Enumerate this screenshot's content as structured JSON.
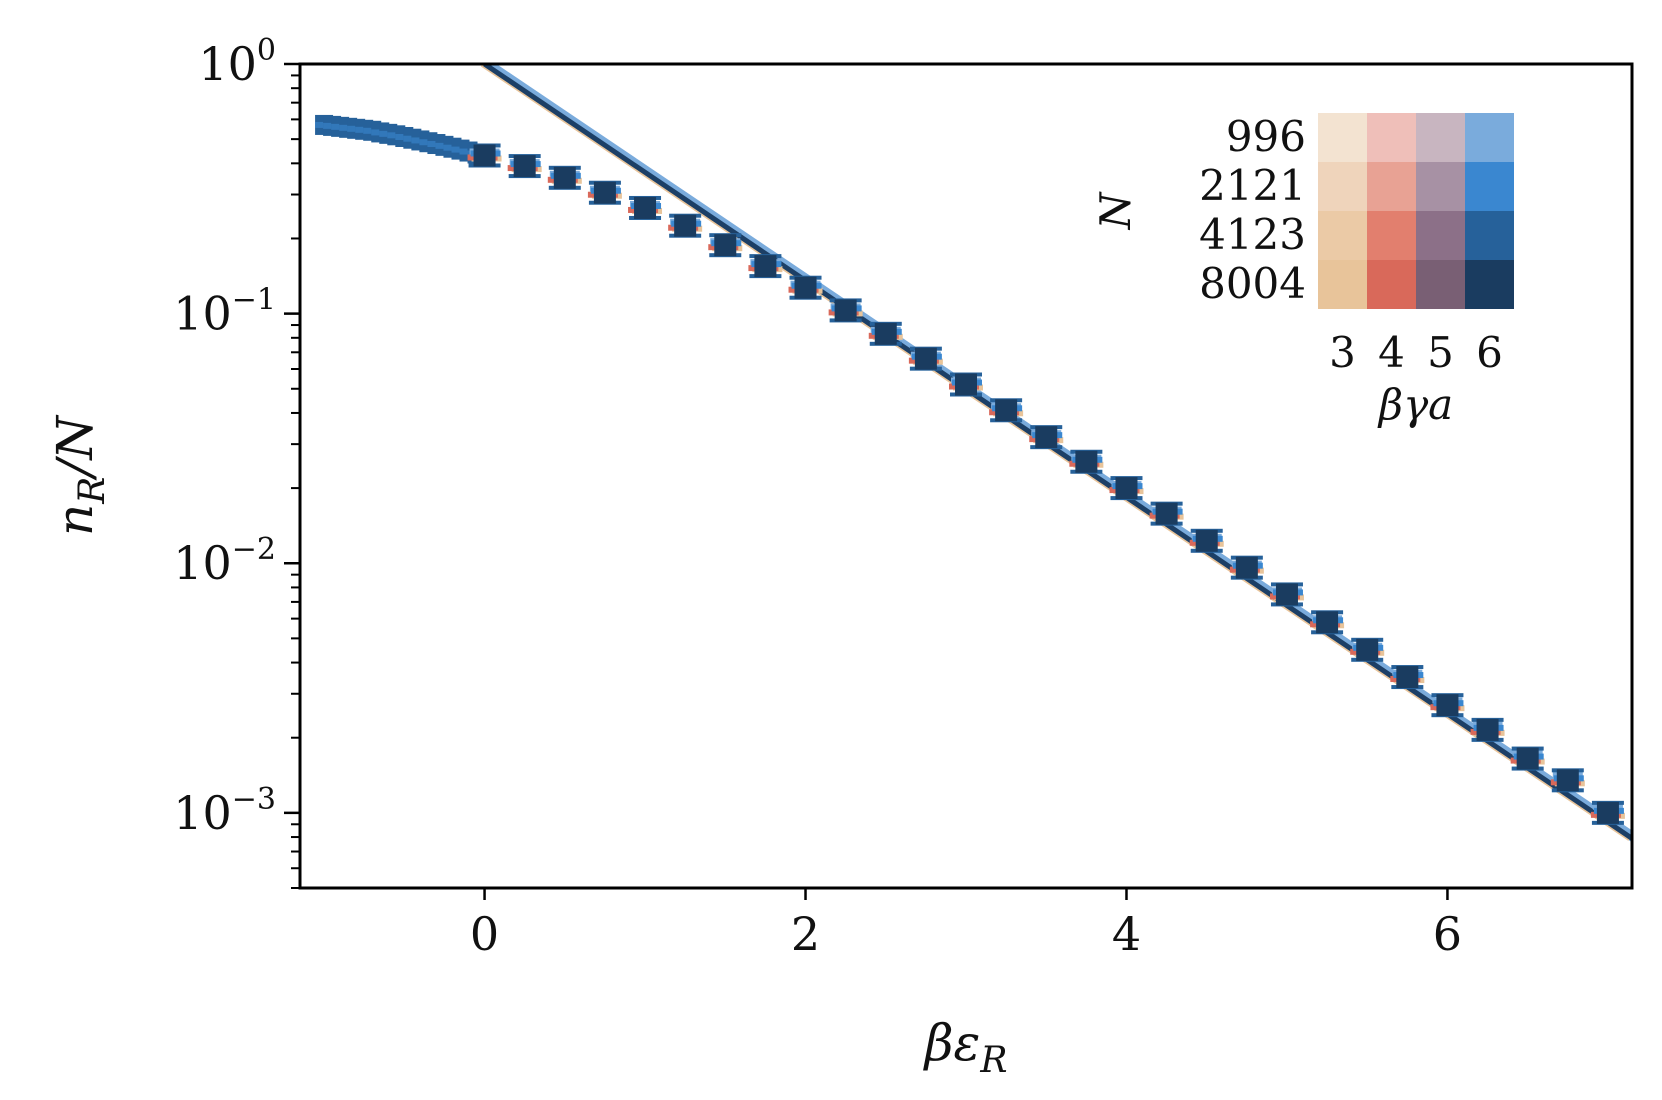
{
  "chart_data": {
    "type": "scatter",
    "xlabel": "βε_R",
    "ylabel": "n_R/N",
    "xlim": [
      -1.15,
      7.15
    ],
    "ylim": [
      0.0005,
      1.0
    ],
    "yscale": "log",
    "x_ticks": [
      0,
      2,
      4,
      6
    ],
    "x_tick_labels": [
      "0",
      "2",
      "4",
      "6"
    ],
    "y_ticks": [
      1.0,
      0.1,
      0.01,
      0.001
    ],
    "y_tick_labels": [
      {
        "base": "10",
        "exp": "0"
      },
      {
        "base": "10",
        "exp": "−1"
      },
      {
        "base": "10",
        "exp": "−2"
      },
      {
        "base": "10",
        "exp": "−3"
      }
    ],
    "grid": false,
    "reference_line": {
      "description": "exp(-x)",
      "x": [
        0.0,
        7.15
      ],
      "y": [
        1.0,
        0.00079
      ],
      "color": "#1c3f66"
    },
    "points": {
      "x": [
        -1.0,
        -0.95,
        -0.9,
        -0.85,
        -0.8,
        -0.75,
        -0.7,
        -0.65,
        -0.6,
        -0.55,
        -0.5,
        -0.45,
        -0.4,
        -0.35,
        -0.3,
        -0.25,
        -0.2,
        -0.15,
        -0.1,
        -0.05,
        0.0,
        0.25,
        0.5,
        0.75,
        1.0,
        1.25,
        1.5,
        1.75,
        2.0,
        2.25,
        2.5,
        2.75,
        3.0,
        3.25,
        3.5,
        3.75,
        4.0,
        4.25,
        4.5,
        4.75,
        5.0,
        5.25,
        5.5,
        5.75,
        6.0,
        6.25,
        6.5,
        6.75,
        7.0
      ],
      "y": [
        0.57,
        0.565,
        0.56,
        0.555,
        0.55,
        0.545,
        0.54,
        0.532,
        0.525,
        0.518,
        0.51,
        0.502,
        0.494,
        0.486,
        0.478,
        0.47,
        0.462,
        0.454,
        0.446,
        0.438,
        0.43,
        0.39,
        0.35,
        0.305,
        0.265,
        0.225,
        0.188,
        0.155,
        0.127,
        0.103,
        0.083,
        0.066,
        0.052,
        0.041,
        0.032,
        0.0255,
        0.02,
        0.0158,
        0.0123,
        0.0096,
        0.0075,
        0.0058,
        0.0045,
        0.0035,
        0.0027,
        0.00215,
        0.00165,
        0.00135,
        0.001
      ]
    },
    "legend": {
      "title_rows": "N",
      "title_cols": "βγa",
      "rows": [
        "996",
        "2121",
        "4123",
        "8004"
      ],
      "cols": [
        "3",
        "4",
        "5",
        "6"
      ],
      "colors": [
        [
          "#f3e3d1",
          "#efbfb9",
          "#c8b5c0",
          "#7aabdc"
        ],
        [
          "#efd4bb",
          "#e8a294",
          "#a791a4",
          "#3a87d0"
        ],
        [
          "#ebcaa6",
          "#e27f6e",
          "#8c7088",
          "#26619a"
        ],
        [
          "#e8c49a",
          "#d9695a",
          "#795f74",
          "#1a3c60"
        ]
      ],
      "placement": "top-right"
    },
    "point_colors": [
      "#e8c49a",
      "#d9695a",
      "#7aabdc",
      "#3a87d0",
      "#26619a",
      "#1a3c60"
    ]
  }
}
